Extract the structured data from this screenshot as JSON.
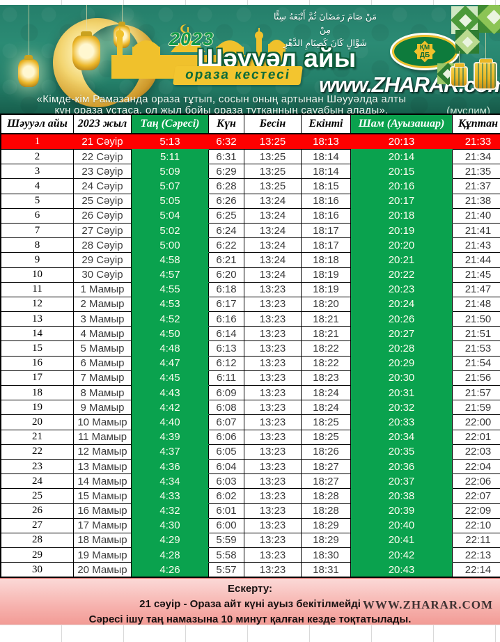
{
  "banner": {
    "arabic_line1": "مَنْ صَامَ رَمَضَانَ ثُمَّ أَتْبَعَهُ سِتًّا مِنْ",
    "arabic_line2": "شَوَّالٍ كَانَ كَصِيَامِ الدَّهْرِ",
    "year": "2023",
    "title": "Шәууәл айы",
    "subtitle": "ораза кестесі",
    "website": "www.ZHARAR.com",
    "logo": {
      "line1": "ҚМ",
      "line2": "ДБ"
    },
    "quote_line1": "«Кімде-кім Рамазанда ораза тұтып, сосын оның артынан Шәууәлда алты",
    "quote_line2": "күн ораза ұстаса, ол жыл бойы ораза тұтқанның сауабын алады».",
    "quote_source": "(муслим)"
  },
  "table": {
    "columns": [
      "Шәууәл айы",
      "2023 жыл",
      "Таң (Сәресі)",
      "Күн",
      "Бесін",
      "Екінті",
      "Шам (Ауызашар)",
      "Құптан"
    ],
    "highlighted_day": "1",
    "rows": [
      [
        "1",
        "21 Сәуір",
        "5:13",
        "6:32",
        "13:25",
        "18:13",
        "20:13",
        "21:33"
      ],
      [
        "2",
        "22 Сәуір",
        "5:11",
        "6:31",
        "13:25",
        "18:14",
        "20:14",
        "21:34"
      ],
      [
        "3",
        "23 Сәуір",
        "5:09",
        "6:29",
        "13:25",
        "18:14",
        "20:15",
        "21:35"
      ],
      [
        "4",
        "24 Сәуір",
        "5:07",
        "6:28",
        "13:25",
        "18:15",
        "20:16",
        "21:37"
      ],
      [
        "5",
        "25 Сәуір",
        "5:05",
        "6:26",
        "13:24",
        "18:16",
        "20:17",
        "21:38"
      ],
      [
        "6",
        "26 Сәуір",
        "5:04",
        "6:25",
        "13:24",
        "18:16",
        "20:18",
        "21:40"
      ],
      [
        "7",
        "27 Сәуір",
        "5:02",
        "6:24",
        "13:24",
        "18:17",
        "20:19",
        "21:41"
      ],
      [
        "8",
        "28 Сәуір",
        "5:00",
        "6:22",
        "13:24",
        "18:17",
        "20:20",
        "21:43"
      ],
      [
        "9",
        "29 Сәуір",
        "4:58",
        "6:21",
        "13:24",
        "18:18",
        "20:21",
        "21:44"
      ],
      [
        "10",
        "30 Сәуір",
        "4:57",
        "6:20",
        "13:24",
        "18:19",
        "20:22",
        "21:45"
      ],
      [
        "11",
        "1 Мамыр",
        "4:55",
        "6:18",
        "13:23",
        "18:19",
        "20:23",
        "21:47"
      ],
      [
        "12",
        "2 Мамыр",
        "4:53",
        "6:17",
        "13:23",
        "18:20",
        "20:24",
        "21:48"
      ],
      [
        "13",
        "3 Мамыр",
        "4:52",
        "6:16",
        "13:23",
        "18:21",
        "20:26",
        "21:50"
      ],
      [
        "14",
        "4 Мамыр",
        "4:50",
        "6:14",
        "13:23",
        "18:21",
        "20:27",
        "21:51"
      ],
      [
        "15",
        "5 Мамыр",
        "4:48",
        "6:13",
        "13:23",
        "18:22",
        "20:28",
        "21:53"
      ],
      [
        "16",
        "6 Мамыр",
        "4:47",
        "6:12",
        "13:23",
        "18:22",
        "20:29",
        "21:54"
      ],
      [
        "17",
        "7 Мамыр",
        "4:45",
        "6:11",
        "13:23",
        "18:23",
        "20:30",
        "21:56"
      ],
      [
        "18",
        "8 Мамыр",
        "4:43",
        "6:09",
        "13:23",
        "18:24",
        "20:31",
        "21:57"
      ],
      [
        "19",
        "9 Мамыр",
        "4:42",
        "6:08",
        "13:23",
        "18:24",
        "20:32",
        "21:59"
      ],
      [
        "20",
        "10 Мамыр",
        "4:40",
        "6:07",
        "13:23",
        "18:25",
        "20:33",
        "22:00"
      ],
      [
        "21",
        "11 Мамыр",
        "4:39",
        "6:06",
        "13:23",
        "18:25",
        "20:34",
        "22:01"
      ],
      [
        "22",
        "12 Мамыр",
        "4:37",
        "6:05",
        "13:23",
        "18:26",
        "20:35",
        "22:03"
      ],
      [
        "23",
        "13 Мамыр",
        "4:36",
        "6:04",
        "13:23",
        "18:27",
        "20:36",
        "22:04"
      ],
      [
        "24",
        "14 Мамыр",
        "4:34",
        "6:03",
        "13:23",
        "18:27",
        "20:37",
        "22:06"
      ],
      [
        "25",
        "15 Мамыр",
        "4:33",
        "6:02",
        "13:23",
        "18:28",
        "20:38",
        "22:07"
      ],
      [
        "26",
        "16 Мамыр",
        "4:32",
        "6:01",
        "13:23",
        "18:28",
        "20:39",
        "22:09"
      ],
      [
        "27",
        "17 Мамыр",
        "4:30",
        "6:00",
        "13:23",
        "18:29",
        "20:40",
        "22:10"
      ],
      [
        "28",
        "18 Мамыр",
        "4:29",
        "5:59",
        "13:23",
        "18:29",
        "20:41",
        "22:11"
      ],
      [
        "29",
        "19 Мамыр",
        "4:28",
        "5:58",
        "13:23",
        "18:30",
        "20:42",
        "22:13"
      ],
      [
        "30",
        "20 Мамыр",
        "4:26",
        "5:57",
        "13:23",
        "18:31",
        "20:43",
        "22:14"
      ]
    ]
  },
  "footer": {
    "note_title": "Ескерту:",
    "note_line1": "21 сәуір - Ораза айт күні ауыз бекітілмейді",
    "note_line2": "Сәресі ішу таң намазына 10 минут қалған кезде тоқтатылады.",
    "watermark": "WWW.ZHARAR.COM"
  },
  "colors": {
    "accent_green": "#0aa24e",
    "highlight_red": "#fe0000",
    "banner_teal": "#27846e",
    "gold": "#f3c52f"
  }
}
